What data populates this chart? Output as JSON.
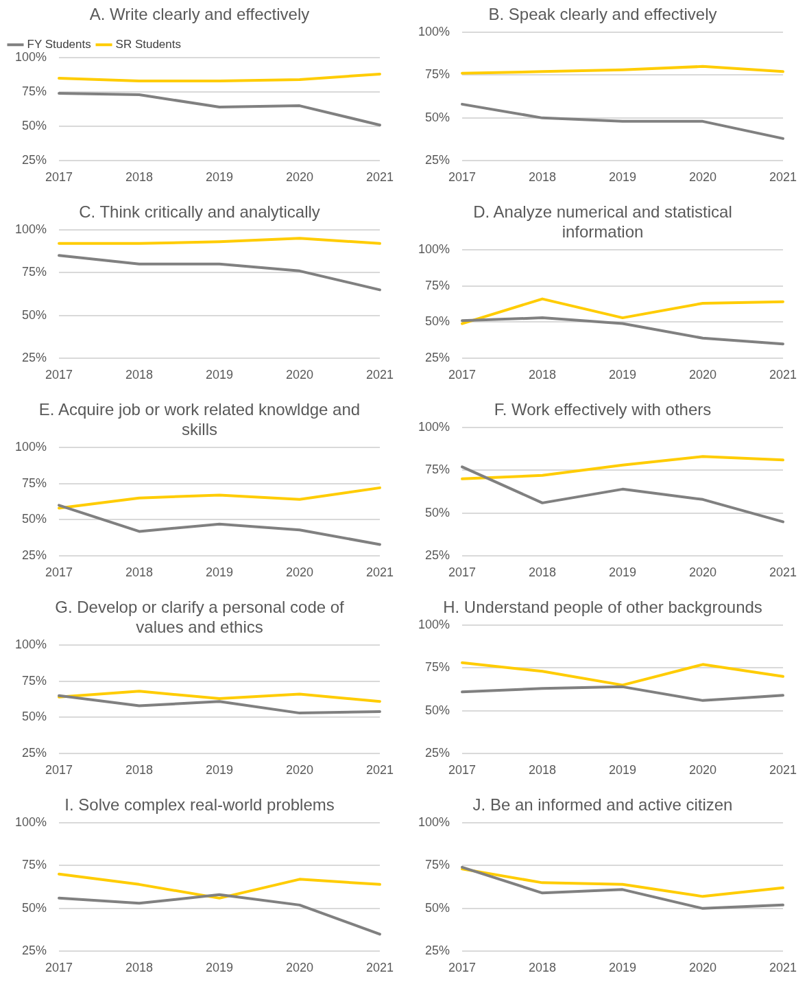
{
  "chart_data": [
    {
      "type": "line",
      "title": "A. Write clearly and effectively",
      "categories": [
        "2017",
        "2018",
        "2019",
        "2020",
        "2021"
      ],
      "series": [
        {
          "name": "FY Students",
          "color": "#808080",
          "values": [
            74,
            73,
            64,
            65,
            51
          ]
        },
        {
          "name": "SR Students",
          "color": "#ffcc00",
          "values": [
            85,
            83,
            83,
            84,
            88
          ]
        }
      ],
      "ylim": [
        25,
        100
      ],
      "yticks": [
        {
          "value": 25,
          "label": "25%"
        },
        {
          "value": 50,
          "label": "50%"
        },
        {
          "value": 75,
          "label": "75%"
        },
        {
          "value": 100,
          "label": "100%"
        }
      ],
      "grid": "y",
      "legend": "top",
      "marker": "none"
    },
    {
      "type": "line",
      "title": "B. Speak clearly and effectively",
      "categories": [
        "2017",
        "2018",
        "2019",
        "2020",
        "2021"
      ],
      "series": [
        {
          "color": "#808080",
          "values": [
            58,
            50,
            48,
            48,
            38
          ]
        },
        {
          "color": "#ffcc00",
          "values": [
            76,
            77,
            78,
            80,
            77
          ]
        }
      ],
      "ylim": [
        25,
        100
      ],
      "yticks": [
        {
          "value": 25,
          "label": "25%"
        },
        {
          "value": 50,
          "label": "50%"
        },
        {
          "value": 75,
          "label": "75%"
        },
        {
          "value": 100,
          "label": "100%"
        }
      ],
      "grid": "y",
      "marker": "none"
    },
    {
      "type": "line",
      "title": "C. Think critically and analytically",
      "categories": [
        "2017",
        "2018",
        "2019",
        "2020",
        "2021"
      ],
      "series": [
        {
          "color": "#808080",
          "values": [
            85,
            80,
            80,
            76,
            65
          ]
        },
        {
          "color": "#ffcc00",
          "values": [
            92,
            92,
            93,
            95,
            92
          ]
        }
      ],
      "ylim": [
        25,
        100
      ],
      "yticks": [
        {
          "value": 25,
          "label": "25%"
        },
        {
          "value": 50,
          "label": "50%"
        },
        {
          "value": 75,
          "label": "75%"
        },
        {
          "value": 100,
          "label": "100%"
        }
      ],
      "grid": "y",
      "marker": "none"
    },
    {
      "type": "line",
      "title": "D. Analyze numerical and statistical information",
      "categories": [
        "2017",
        "2018",
        "2019",
        "2020",
        "2021"
      ],
      "series": [
        {
          "color": "#808080",
          "values": [
            51,
            53,
            49,
            39,
            35
          ]
        },
        {
          "color": "#ffcc00",
          "values": [
            49,
            66,
            53,
            63,
            64
          ]
        }
      ],
      "ylim": [
        25,
        100
      ],
      "yticks": [
        {
          "value": 25,
          "label": "25%"
        },
        {
          "value": 50,
          "label": "50%"
        },
        {
          "value": 75,
          "label": "75%"
        },
        {
          "value": 100,
          "label": "100%"
        }
      ],
      "grid": "y",
      "marker": "none"
    },
    {
      "type": "line",
      "title": "E. Acquire job or work related knowldge and skills",
      "categories": [
        "2017",
        "2018",
        "2019",
        "2020",
        "2021"
      ],
      "series": [
        {
          "color": "#808080",
          "values": [
            60,
            42,
            47,
            43,
            33
          ]
        },
        {
          "color": "#ffcc00",
          "values": [
            58,
            65,
            67,
            64,
            72
          ]
        }
      ],
      "ylim": [
        25,
        100
      ],
      "yticks": [
        {
          "value": 25,
          "label": "25%"
        },
        {
          "value": 50,
          "label": "50%"
        },
        {
          "value": 75,
          "label": "75%"
        },
        {
          "value": 100,
          "label": "100%"
        }
      ],
      "grid": "y",
      "marker": "none"
    },
    {
      "type": "line",
      "title": "F. Work effectively with others",
      "categories": [
        "2017",
        "2018",
        "2019",
        "2020",
        "2021"
      ],
      "series": [
        {
          "color": "#808080",
          "values": [
            77,
            56,
            64,
            58,
            45
          ]
        },
        {
          "color": "#ffcc00",
          "values": [
            70,
            72,
            78,
            83,
            81
          ]
        }
      ],
      "ylim": [
        25,
        100
      ],
      "yticks": [
        {
          "value": 25,
          "label": "25%"
        },
        {
          "value": 50,
          "label": "50%"
        },
        {
          "value": 75,
          "label": "75%"
        },
        {
          "value": 100,
          "label": "100%"
        }
      ],
      "grid": "y",
      "marker": "none"
    },
    {
      "type": "line",
      "title": "G. Develop or clarify a personal code of values and ethics",
      "categories": [
        "2017",
        "2018",
        "2019",
        "2020",
        "2021"
      ],
      "series": [
        {
          "color": "#808080",
          "values": [
            65,
            58,
            61,
            53,
            54
          ]
        },
        {
          "color": "#ffcc00",
          "values": [
            64,
            68,
            63,
            66,
            61
          ]
        }
      ],
      "ylim": [
        25,
        100
      ],
      "yticks": [
        {
          "value": 25,
          "label": "25%"
        },
        {
          "value": 50,
          "label": "50%"
        },
        {
          "value": 75,
          "label": "75%"
        },
        {
          "value": 100,
          "label": "100%"
        }
      ],
      "grid": "y",
      "marker": "none"
    },
    {
      "type": "line",
      "title": "H. Understand people of other backgrounds",
      "categories": [
        "2017",
        "2018",
        "2019",
        "2020",
        "2021"
      ],
      "series": [
        {
          "color": "#808080",
          "values": [
            61,
            63,
            64,
            56,
            59
          ]
        },
        {
          "color": "#ffcc00",
          "values": [
            78,
            73,
            65,
            77,
            70
          ]
        }
      ],
      "ylim": [
        25,
        100
      ],
      "yticks": [
        {
          "value": 25,
          "label": "25%"
        },
        {
          "value": 50,
          "label": "50%"
        },
        {
          "value": 75,
          "label": "75%"
        },
        {
          "value": 100,
          "label": "100%"
        }
      ],
      "grid": "y",
      "marker": "none"
    },
    {
      "type": "line",
      "title": "I. Solve complex real-world problems",
      "categories": [
        "2017",
        "2018",
        "2019",
        "2020",
        "2021"
      ],
      "series": [
        {
          "color": "#808080",
          "values": [
            56,
            53,
            58,
            52,
            35
          ]
        },
        {
          "color": "#ffcc00",
          "values": [
            70,
            64,
            56,
            67,
            64
          ]
        }
      ],
      "ylim": [
        25,
        100
      ],
      "yticks": [
        {
          "value": 25,
          "label": "25%"
        },
        {
          "value": 50,
          "label": "50%"
        },
        {
          "value": 75,
          "label": "75%"
        },
        {
          "value": 100,
          "label": "100%"
        }
      ],
      "grid": "y",
      "marker": "none"
    },
    {
      "type": "line",
      "title": "J. Be an informed and active citizen",
      "categories": [
        "2017",
        "2018",
        "2019",
        "2020",
        "2021"
      ],
      "series": [
        {
          "color": "#808080",
          "values": [
            74,
            59,
            61,
            50,
            52
          ]
        },
        {
          "color": "#ffcc00",
          "values": [
            73,
            65,
            64,
            57,
            62
          ]
        }
      ],
      "ylim": [
        25,
        100
      ],
      "yticks": [
        {
          "value": 25,
          "label": "25%"
        },
        {
          "value": 50,
          "label": "50%"
        },
        {
          "value": 75,
          "label": "75%"
        },
        {
          "value": 100,
          "label": "100%"
        }
      ],
      "grid": "y",
      "marker": "none"
    }
  ]
}
